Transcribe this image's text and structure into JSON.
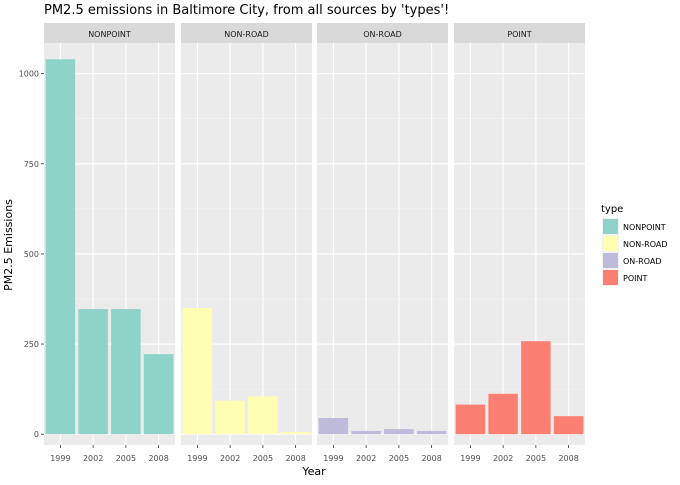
{
  "chart_data": {
    "type": "bar",
    "title": "PM2.5 emissions in Baltimore City, from all sources by 'types'!",
    "xlabel": "Year",
    "ylabel": "PM2.5 Emissions",
    "categories": [
      "1999",
      "2002",
      "2005",
      "2008"
    ],
    "ylim": [
      -30,
      1085
    ],
    "yticks": [
      0,
      250,
      500,
      750,
      1000
    ],
    "grid": true,
    "facets": [
      {
        "name": "NONPOINT",
        "values": [
          1040,
          347,
          347,
          222
        ],
        "color": "#8DD3C7"
      },
      {
        "name": "NON-ROAD",
        "values": [
          350,
          93,
          105,
          6
        ],
        "color": "#FFFFB3"
      },
      {
        "name": "ON-ROAD",
        "values": [
          45,
          9,
          14,
          9
        ],
        "color": "#BEBADA"
      },
      {
        "name": "POINT",
        "values": [
          82,
          112,
          258,
          50
        ],
        "color": "#FB8072"
      }
    ],
    "legend": {
      "title": "type",
      "placement": "right",
      "items": [
        {
          "label": "NONPOINT",
          "color": "#8DD3C7"
        },
        {
          "label": "NON-ROAD",
          "color": "#FFFFB3"
        },
        {
          "label": "ON-ROAD",
          "color": "#BEBADA"
        },
        {
          "label": "POINT",
          "color": "#FB8072"
        }
      ]
    },
    "panel_background": "#EBEBEB",
    "strip_background": "#D9D9D9"
  }
}
